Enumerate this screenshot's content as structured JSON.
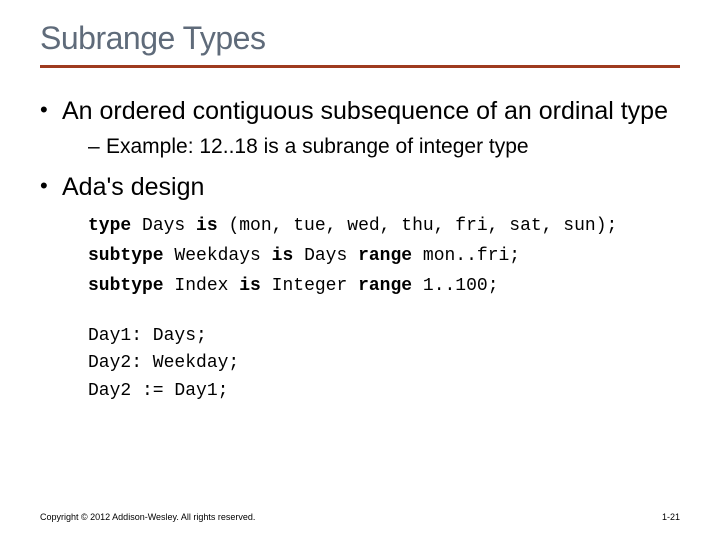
{
  "colors": {
    "title": "#5f6b7a",
    "rule": "#9e3b1f",
    "body_text": "#000000",
    "footer_text": "#000000"
  },
  "typography": {
    "title_fontsize": 32,
    "bullet_fontsize": 25,
    "sub_fontsize": 21,
    "code_fontsize": 18,
    "footer_fontsize": 9
  },
  "title": "Subrange Types",
  "bullets": [
    {
      "text": "An ordered contiguous subsequence of an ordinal type",
      "sub": [
        "Example:  12..18 is a subrange of integer type"
      ]
    },
    {
      "text": "Ada's design"
    }
  ],
  "code_lines": [
    {
      "kw": "type",
      "rest": " Days ",
      "kw2": "is",
      "rest2": " (mon, tue, wed, thu, fri, sat, sun);"
    },
    {
      "kw": "subtype",
      "rest": " Weekdays ",
      "kw2": "is",
      "rest2": " Days ",
      "kw3": "range",
      "rest3": " mon..fri;"
    },
    {
      "kw": "subtype",
      "rest": " Index ",
      "kw2": "is",
      "rest2": " Integer ",
      "kw3": "range",
      "rest3": " 1..100;"
    }
  ],
  "decl_lines": [
    "Day1: Days;",
    "Day2: Weekday;",
    "Day2 := Day1;"
  ],
  "footer": "Copyright © 2012 Addison-Wesley. All rights reserved.",
  "pagenum": "1-21"
}
